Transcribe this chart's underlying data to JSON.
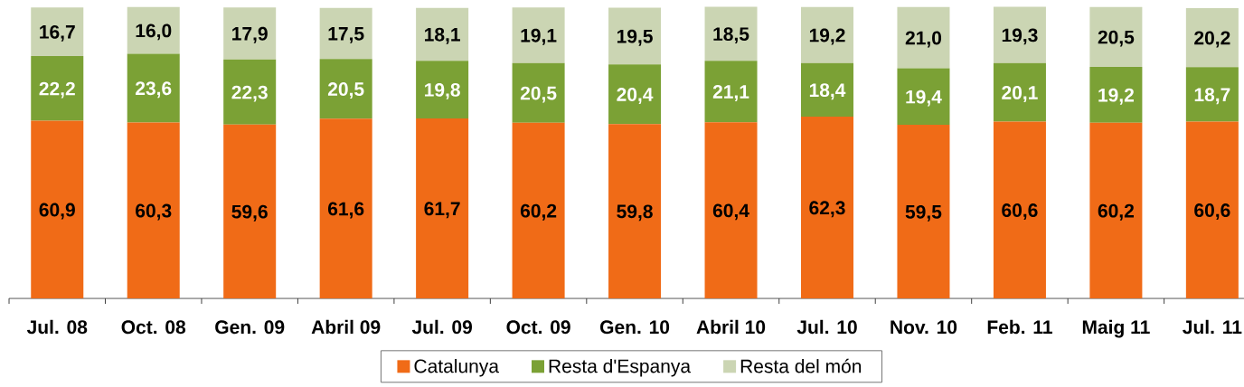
{
  "chart_data": {
    "type": "bar",
    "stacked": true,
    "categories": [
      "Jul. 08",
      "Oct. 08",
      "Gen. 09",
      "Abril 09",
      "Jul. 09",
      "Oct. 09",
      "Gen. 10",
      "Abril 10",
      "Jul. 10",
      "Nov. 10",
      "Feb. 11",
      "Maig 11",
      "Jul. 11"
    ],
    "series": [
      {
        "name": "Catalunya",
        "color": "#f06b17",
        "values": [
          60.9,
          60.3,
          59.6,
          61.6,
          61.7,
          60.2,
          59.8,
          60.4,
          62.3,
          59.5,
          60.6,
          60.2,
          60.6
        ],
        "value_labels": [
          "60,9",
          "60,3",
          "59,6",
          "61,6",
          "61,7",
          "60,2",
          "59,8",
          "60,4",
          "62,3",
          "59,5",
          "60,6",
          "60,2",
          "60,6"
        ]
      },
      {
        "name": "Resta d'Espanya",
        "color": "#7ba135",
        "values": [
          22.2,
          23.6,
          22.3,
          20.5,
          19.8,
          20.5,
          20.4,
          21.1,
          18.4,
          19.4,
          20.1,
          19.2,
          18.7
        ],
        "value_labels": [
          "22,2",
          "23,6",
          "22,3",
          "20,5",
          "19,8",
          "20,5",
          "20,4",
          "21,1",
          "18,4",
          "19,4",
          "20,1",
          "19,2",
          "18,7"
        ]
      },
      {
        "name": "Resta del món",
        "color": "#cbd5b3",
        "values": [
          16.7,
          16.0,
          17.9,
          17.5,
          18.1,
          19.1,
          19.5,
          18.5,
          19.2,
          21.0,
          19.3,
          20.5,
          20.2
        ],
        "value_labels": [
          "16,7",
          "16,0",
          "17,9",
          "17,5",
          "18,1",
          "19,1",
          "19,5",
          "18,5",
          "19,2",
          "21,0",
          "19,3",
          "20,5",
          "20,2"
        ]
      }
    ],
    "ylim": [
      0,
      100
    ],
    "legend": "bottom",
    "tick_labels": "x"
  }
}
